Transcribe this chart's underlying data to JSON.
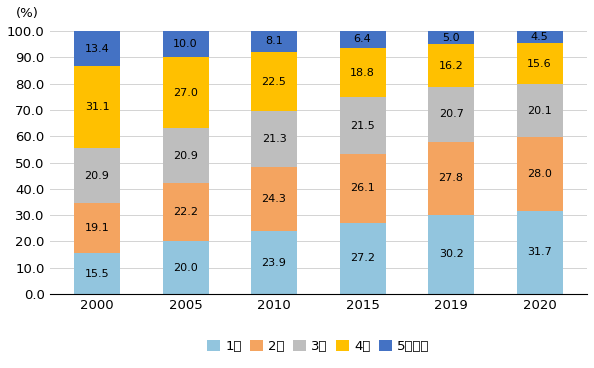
{
  "years": [
    "2000",
    "2005",
    "2010",
    "2015",
    "2019",
    "2020"
  ],
  "series": {
    "1人": [
      15.5,
      20.0,
      23.9,
      27.2,
      30.2,
      31.7
    ],
    "2人": [
      19.1,
      22.2,
      24.3,
      26.1,
      27.8,
      28.0
    ],
    "3人": [
      20.9,
      20.9,
      21.3,
      21.5,
      20.7,
      20.1
    ],
    "4人": [
      31.1,
      27.0,
      22.5,
      18.8,
      16.2,
      15.6
    ],
    "5人以上": [
      13.4,
      10.0,
      8.1,
      6.4,
      5.0,
      4.5
    ]
  },
  "colors": {
    "1人": "#92C5DE",
    "2人": "#F4A460",
    "3人": "#BEBEBE",
    "4人": "#FFC000",
    "5人以上": "#4472C4"
  },
  "ylabel": "(%)",
  "ylim": [
    0,
    100
  ],
  "yticks": [
    0.0,
    10.0,
    20.0,
    30.0,
    40.0,
    50.0,
    60.0,
    70.0,
    80.0,
    90.0,
    100.0
  ],
  "label_fontsize": 8.0,
  "legend_fontsize": 9.5,
  "tick_fontsize": 9.5,
  "bar_width": 0.52
}
